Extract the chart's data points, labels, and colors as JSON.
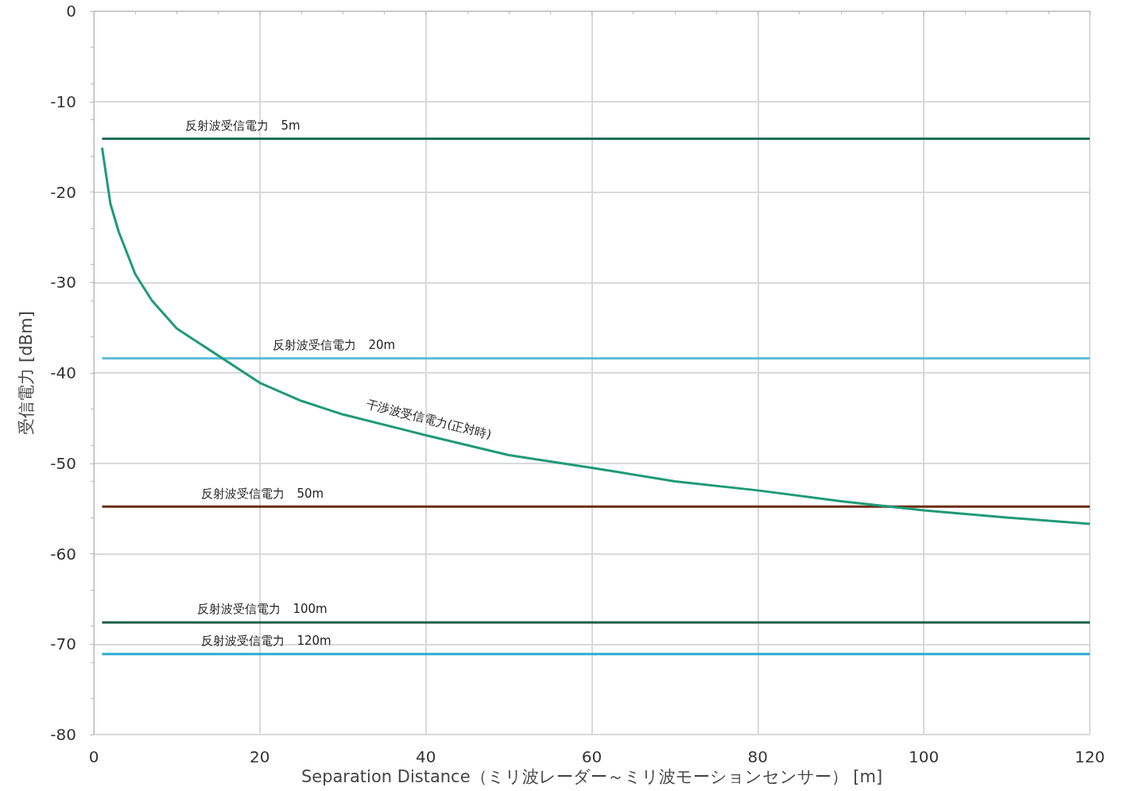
{
  "chart_data": {
    "type": "line",
    "xlabel": "Separation Distance（ミリ波レーダー～ミリ波モーションセンサー） [m]",
    "ylabel": "受信電力 [dBm]",
    "xlim": [
      0,
      120
    ],
    "xticks": [
      0,
      20,
      40,
      60,
      80,
      100,
      120
    ],
    "ylim": [
      -80,
      0
    ],
    "yticks": [
      -80,
      -70,
      -60,
      -50,
      -40,
      -30,
      -20,
      -10,
      0
    ],
    "grid": true,
    "legend": false,
    "marker": "none",
    "line_style": "solid",
    "series": [
      {
        "name": "反射波受信電力　5m",
        "color": "#1e6e5a",
        "x": [
          1,
          120
        ],
        "values": [
          -14.1,
          -14.1
        ]
      },
      {
        "name": "反射波受信電力　20m",
        "color": "#5bbcd6",
        "x": [
          1,
          120
        ],
        "values": [
          -38.4,
          -38.4
        ]
      },
      {
        "name": "反射波受信電力　50m",
        "color": "#6b2d12",
        "x": [
          1,
          120
        ],
        "values": [
          -54.8,
          -54.8
        ]
      },
      {
        "name": "反射波受信電力　100m",
        "color": "#1b5e4a",
        "x": [
          1,
          120
        ],
        "values": [
          -67.6,
          -67.6
        ]
      },
      {
        "name": "反射波受信電力　120m",
        "color": "#2eaad1",
        "x": [
          1,
          120
        ],
        "values": [
          -71.1,
          -71.1
        ]
      },
      {
        "name": "干渉波受信電力(正対時)",
        "color": "#1f9a78",
        "x": [
          1,
          2,
          3,
          5,
          7,
          10,
          20,
          25,
          30,
          40,
          50,
          60,
          70,
          80,
          90,
          100,
          110,
          120
        ],
        "values": [
          -15.1,
          -21.3,
          -24.4,
          -29.1,
          -32.0,
          -35.1,
          -41.1,
          -43.1,
          -44.6,
          -46.9,
          -49.1,
          -50.5,
          -52.0,
          -53.0,
          -54.2,
          -55.2,
          -56.0,
          -56.7
        ]
      }
    ]
  }
}
